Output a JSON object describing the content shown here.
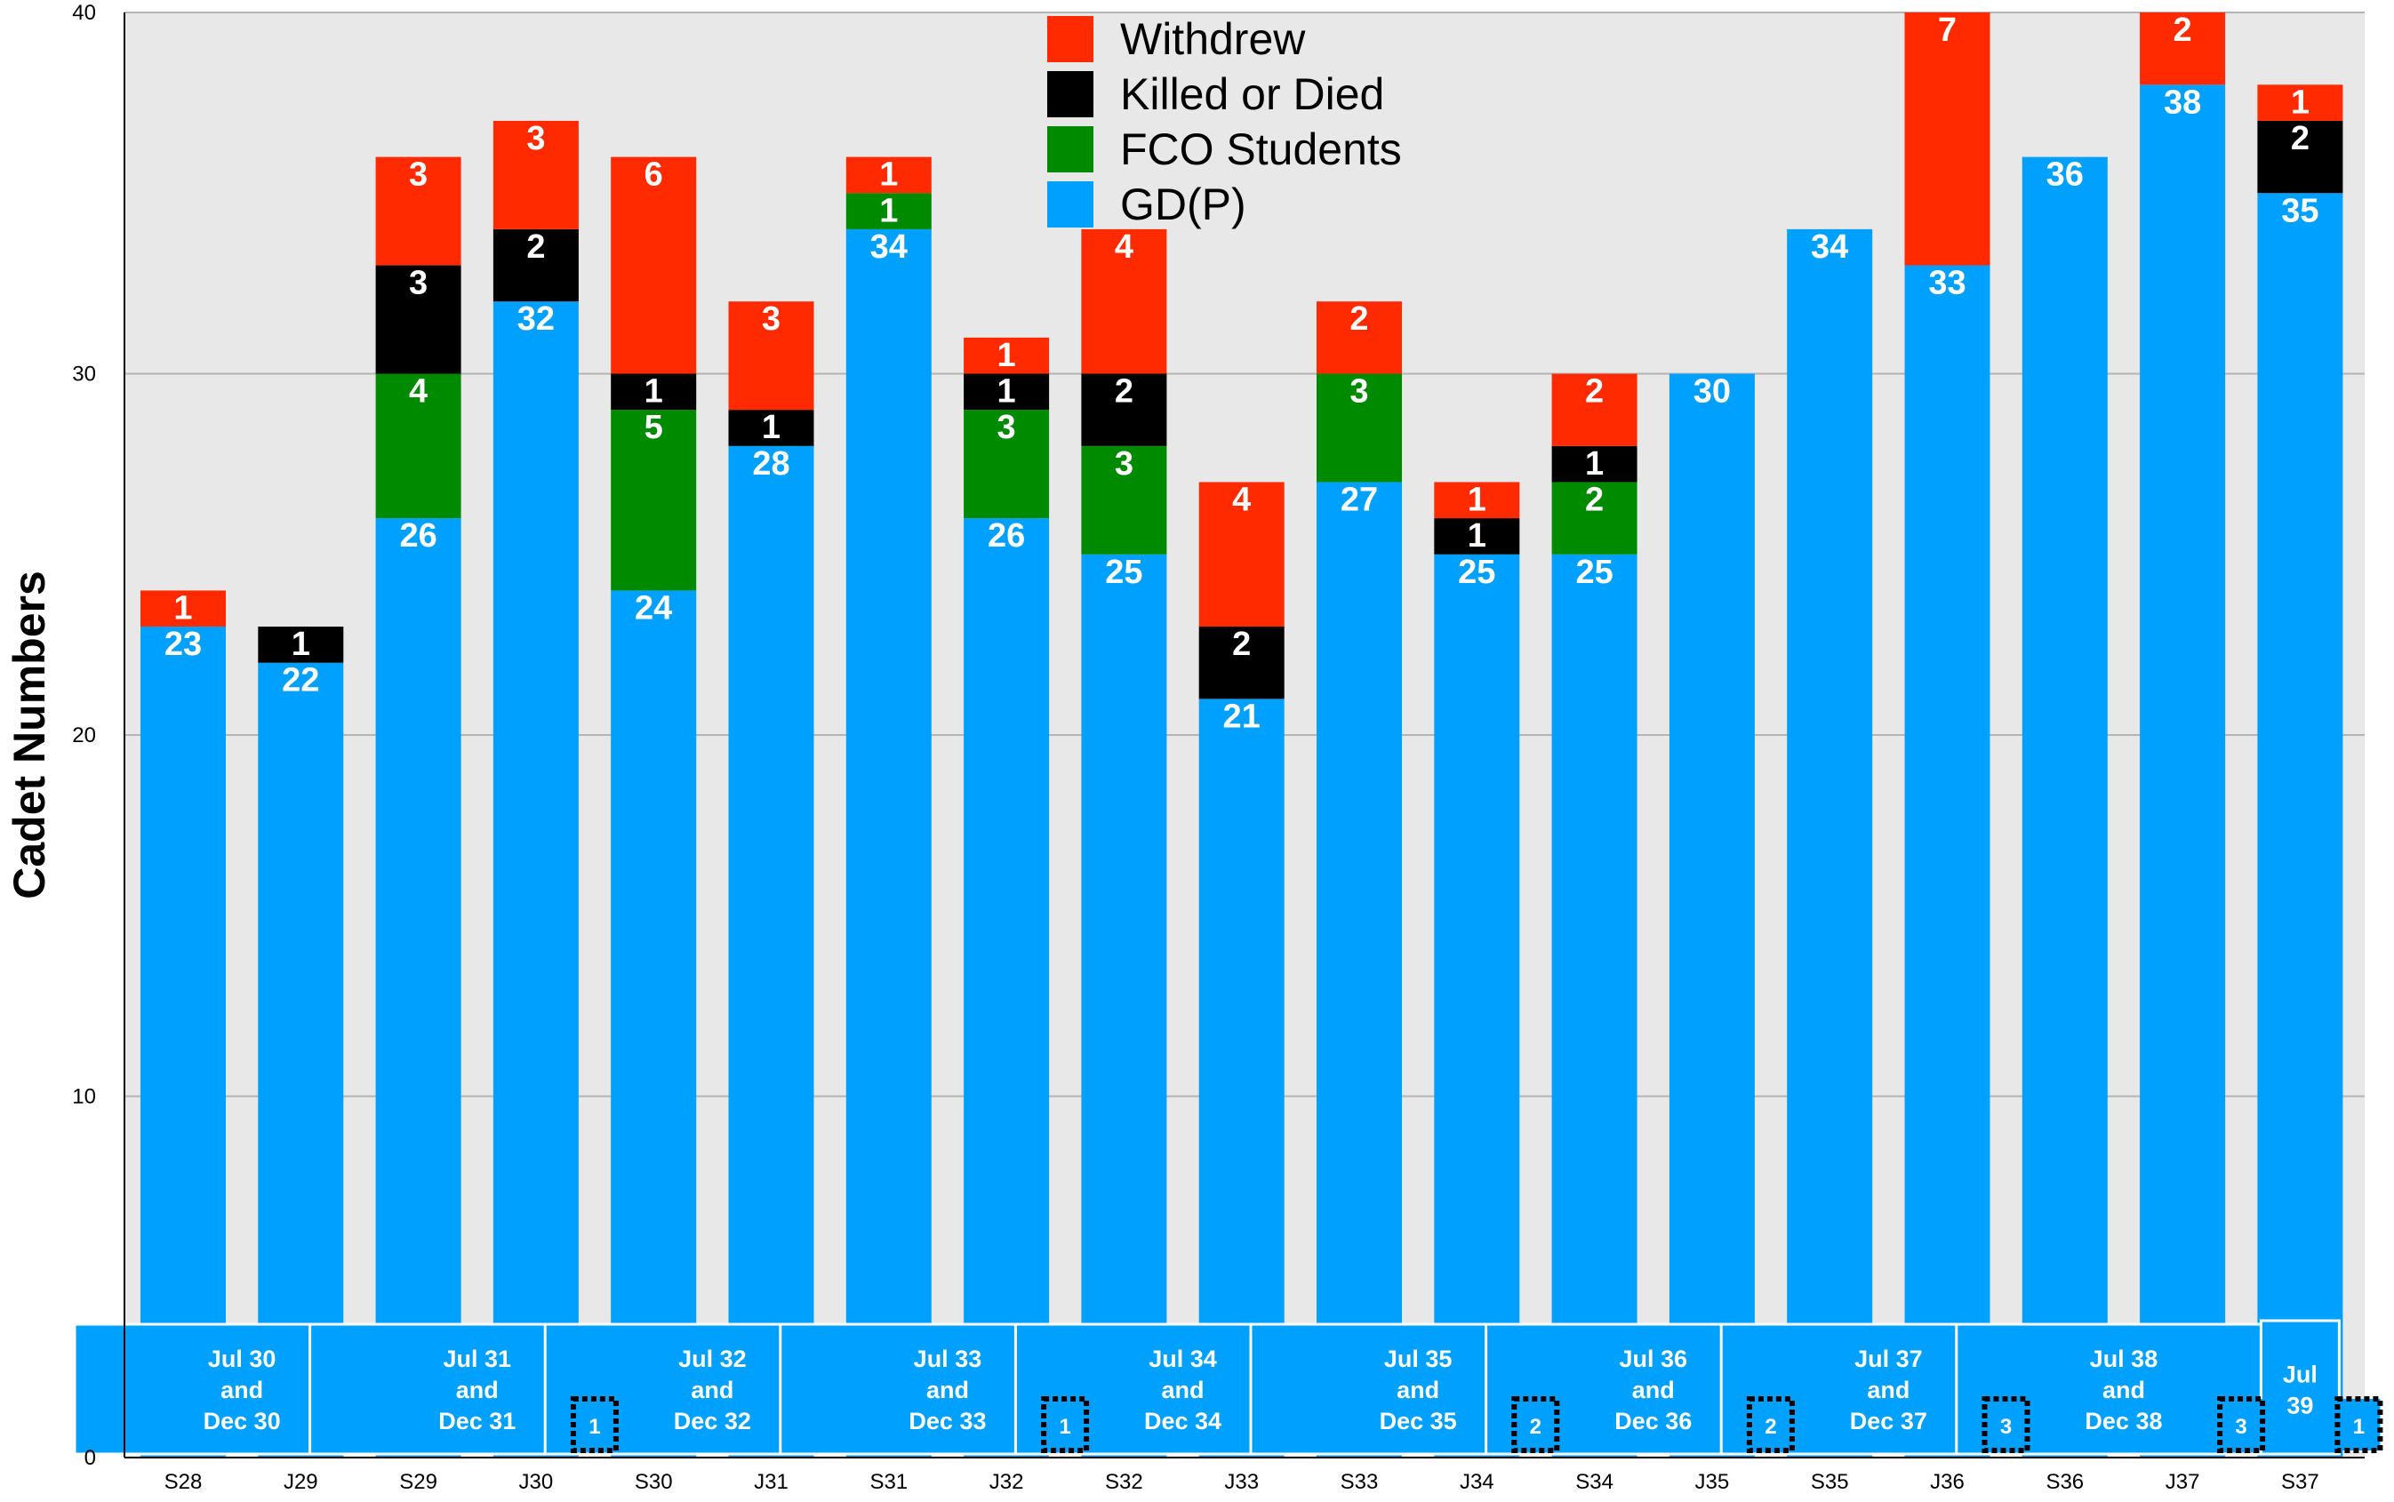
{
  "chart_data": {
    "type": "bar",
    "stacked": true,
    "ylabel": "Cadet Numbers",
    "ylim": [
      0,
      40
    ],
    "yticks": [
      0,
      10,
      20,
      30,
      40
    ],
    "grid": true,
    "legend_position": "top-center",
    "categories": [
      "S28",
      "J29",
      "S29",
      "J30",
      "S30",
      "J31",
      "S31",
      "J32",
      "S32",
      "J33",
      "S33",
      "J34",
      "S34",
      "J35",
      "S35",
      "J36",
      "S36",
      "J37",
      "S37"
    ],
    "series": [
      {
        "name": "GD(P)",
        "color": "#00a0ff",
        "values": [
          23,
          22,
          26,
          32,
          24,
          28,
          34,
          26,
          25,
          21,
          27,
          25,
          25,
          30,
          34,
          33,
          36,
          38,
          35
        ]
      },
      {
        "name": "FCO Students",
        "color": "#008a00",
        "values": [
          0,
          0,
          4,
          0,
          5,
          0,
          1,
          3,
          3,
          0,
          3,
          0,
          2,
          0,
          0,
          0,
          0,
          0,
          0
        ]
      },
      {
        "name": "Killed or Died",
        "color": "#000000",
        "values": [
          0,
          1,
          3,
          2,
          1,
          1,
          0,
          1,
          2,
          2,
          0,
          1,
          1,
          0,
          0,
          0,
          0,
          0,
          2
        ]
      },
      {
        "name": "Withdrew",
        "color": "#ff2a00",
        "values": [
          1,
          0,
          3,
          3,
          6,
          3,
          1,
          1,
          4,
          4,
          2,
          1,
          2,
          0,
          0,
          7,
          0,
          2,
          1
        ]
      }
    ],
    "legend_order": [
      "Withdrew",
      "Killed or Died",
      "FCO Students",
      "GD(P)"
    ],
    "graduation_groups": [
      {
        "label": [
          "Jul 30",
          "and",
          "Dec 30"
        ],
        "from": 0,
        "to": 1
      },
      {
        "label": [
          "Jul 31",
          "and",
          "Dec 31"
        ],
        "from": 2,
        "to": 3
      },
      {
        "label": [
          "Jul 32",
          "and",
          "Dec 32"
        ],
        "from": 4,
        "to": 5
      },
      {
        "label": [
          "Jul 33",
          "and",
          "Dec 33"
        ],
        "from": 6,
        "to": 7
      },
      {
        "label": [
          "Jul 34",
          "and",
          "Dec 34"
        ],
        "from": 8,
        "to": 9
      },
      {
        "label": [
          "Jul 35",
          "and",
          "Dec 35"
        ],
        "from": 10,
        "to": 11
      },
      {
        "label": [
          "Jul 36",
          "and",
          "Dec 36"
        ],
        "from": 12,
        "to": 13
      },
      {
        "label": [
          "Jul 37",
          "and",
          "Dec 37"
        ],
        "from": 14,
        "to": 15
      },
      {
        "label": [
          "Jul 38",
          "and",
          "Dec 38"
        ],
        "from": 16,
        "to": 17
      },
      {
        "label": [
          "Jul",
          "39"
        ],
        "from": 18,
        "to": 18
      }
    ],
    "dotted_markers": [
      {
        "value": "1",
        "after_index": 3
      },
      {
        "value": "1",
        "after_index": 7
      },
      {
        "value": "2",
        "after_index": 11
      },
      {
        "value": "2",
        "after_index": 13
      },
      {
        "value": "3",
        "after_index": 15
      },
      {
        "value": "3",
        "after_index": 17
      },
      {
        "value": "1",
        "after_index": 18
      }
    ]
  }
}
